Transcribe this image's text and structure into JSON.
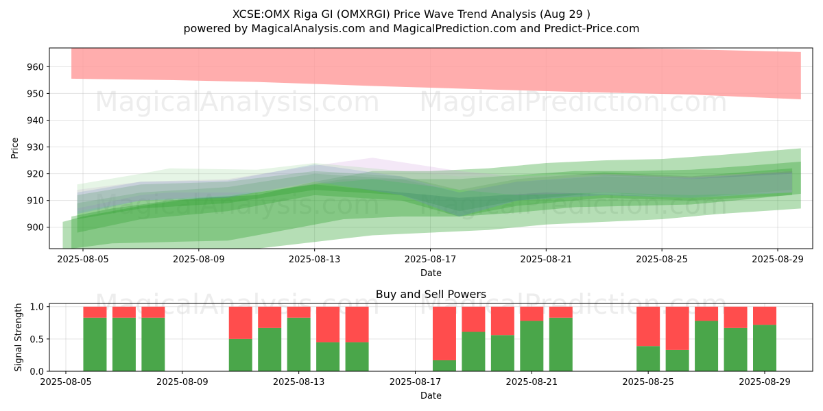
{
  "title_line1": "XCSE:OMX Riga GI (OMXRGI) Price Wave Trend Analysis (Aug 29 )",
  "title_line2": "powered by MagicalAnalysis.com and MagicalPrediction.com and Predict-Price.com",
  "watermarks": [
    "MagicalAnalysis.com",
    "MagicalPrediction.com"
  ],
  "colors": {
    "red_band": "#ff9999",
    "green": "#2ca02c",
    "buy": "#4aa64a",
    "sell": "#ff4d4d"
  },
  "chart_data": [
    {
      "type": "area",
      "name": "price-wave-chart",
      "xlabel": "Date",
      "ylabel": "Price",
      "x_ticks": [
        "2025-08-05",
        "2025-08-09",
        "2025-08-13",
        "2025-08-17",
        "2025-08-21",
        "2025-08-25",
        "2025-08-29"
      ],
      "y_ticks": [
        900,
        910,
        920,
        930,
        940,
        950,
        960
      ],
      "ylim": [
        892,
        967
      ],
      "grid": true,
      "bands": [
        {
          "color": "#ff9999",
          "opacity": 0.8,
          "points": [
            [
              "2025-08-04.6",
              955.5,
              967.5
            ],
            [
              "2025-08-08",
              955.0,
              967.5
            ],
            [
              "2025-08-11",
              954.3,
              967.5
            ],
            [
              "2025-08-15",
              952.8,
              967.5
            ],
            [
              "2025-08-19",
              951.5,
              967.5
            ],
            [
              "2025-08-22",
              950.6,
              967.2
            ],
            [
              "2025-08-26",
              949.6,
              966.5
            ],
            [
              "2025-08-29.8",
              947.8,
              965.5
            ]
          ]
        },
        {
          "color": "#2ca02c",
          "opacity": 0.35,
          "points": [
            [
              "2025-08-04.3",
              892.0,
              902.0
            ],
            [
              "2025-08-05",
              892.0,
              904.0
            ],
            [
              "2025-08-07",
              892.0,
              908.0
            ],
            [
              "2025-08-09",
              892.0,
              911.0
            ],
            [
              "2025-08-11",
              892.0,
              912.0
            ],
            [
              "2025-08-13",
              894.5,
              917.0
            ],
            [
              "2025-08-15",
              897.0,
              921.0
            ],
            [
              "2025-08-17",
              898.0,
              921.0
            ],
            [
              "2025-08-19",
              899.0,
              922.0
            ],
            [
              "2025-08-21",
              901.0,
              924.0
            ],
            [
              "2025-08-23",
              902.0,
              925.0
            ],
            [
              "2025-08-25",
              903.0,
              925.5
            ],
            [
              "2025-08-27",
              905.0,
              927.0
            ],
            [
              "2025-08-29.8",
              907.0,
              929.5
            ]
          ]
        },
        {
          "color": "#2ca02c",
          "opacity": 0.35,
          "points": [
            [
              "2025-08-04.6",
              892.0,
              904.0
            ],
            [
              "2025-08-06",
              894.0,
              907.0
            ],
            [
              "2025-08-08",
              894.5,
              910.0
            ],
            [
              "2025-08-10",
              895.0,
              911.5
            ],
            [
              "2025-08-12",
              899.0,
              914.5
            ],
            [
              "2025-08-14",
              903.0,
              918.0
            ],
            [
              "2025-08-16",
              904.0,
              918.0
            ],
            [
              "2025-08-18",
              904.0,
              918.0
            ],
            [
              "2025-08-20",
              905.5,
              919.5
            ],
            [
              "2025-08-22",
              907.5,
              921.0
            ],
            [
              "2025-08-24",
              908.0,
              921.0
            ],
            [
              "2025-08-26",
              908.5,
              921.5
            ],
            [
              "2025-08-28",
              910.5,
              923.0
            ],
            [
              "2025-08-29.8",
              912.5,
              924.5
            ]
          ]
        },
        {
          "color": "#2ca02c",
          "opacity": 0.3,
          "points": [
            [
              "2025-08-04.8",
              898.0,
              909.0
            ],
            [
              "2025-08-07",
              903.0,
              913.0
            ],
            [
              "2025-08-10",
              906.0,
              915.0
            ],
            [
              "2025-08-13",
              912.0,
              920.0
            ],
            [
              "2025-08-16",
              910.0,
              918.0
            ],
            [
              "2025-08-18",
              904.0,
              913.0
            ],
            [
              "2025-08-20",
              908.0,
              917.0
            ],
            [
              "2025-08-23",
              911.0,
              919.0
            ],
            [
              "2025-08-26",
              910.0,
              918.0
            ],
            [
              "2025-08-29.5",
              912.0,
              921.0
            ]
          ]
        },
        {
          "color": "#2ca02c",
          "opacity": 0.3,
          "points": [
            [
              "2025-08-04.8",
              903.0,
              912.0
            ],
            [
              "2025-08-07",
              907.0,
              916.0
            ],
            [
              "2025-08-10",
              909.0,
              917.0
            ],
            [
              "2025-08-13",
              914.0,
              921.0
            ],
            [
              "2025-08-16",
              912.0,
              919.0
            ],
            [
              "2025-08-18",
              906.0,
              914.0
            ],
            [
              "2025-08-20",
              910.0,
              918.0
            ],
            [
              "2025-08-23",
              913.0,
              920.5
            ],
            [
              "2025-08-26",
              911.0,
              919.0
            ],
            [
              "2025-08-29.5",
              914.0,
              922.0
            ]
          ]
        },
        {
          "color": "#6a7fd8",
          "opacity": 0.25,
          "points": [
            [
              "2025-08-04.8",
              905.0,
              913.0
            ],
            [
              "2025-08-07",
              910.0,
              917.0
            ],
            [
              "2025-08-10",
              911.0,
              917.5
            ],
            [
              "2025-08-13",
              917.0,
              923.5
            ],
            [
              "2025-08-16",
              912.0,
              919.0
            ],
            [
              "2025-08-18",
              904.0,
              913.0
            ],
            [
              "2025-08-20",
              910.0,
              917.0
            ],
            [
              "2025-08-23",
              912.0,
              919.5
            ],
            [
              "2025-08-26",
              911.0,
              918.5
            ],
            [
              "2025-08-29.5",
              913.0,
              920.5
            ]
          ]
        },
        {
          "color": "#c88ad8",
          "opacity": 0.2,
          "points": [
            [
              "2025-08-04.8",
              906.0,
              914.0
            ],
            [
              "2025-08-07",
              910.0,
              917.0
            ],
            [
              "2025-08-10",
              912.0,
              918.0
            ],
            [
              "2025-08-13",
              916.0,
              923.0
            ],
            [
              "2025-08-15",
              918.0,
              926.0
            ],
            [
              "2025-08-18",
              914.0,
              921.0
            ],
            [
              "2025-08-20",
              912.0,
              919.0
            ],
            [
              "2025-08-23",
              913.0,
              920.0
            ],
            [
              "2025-08-26",
              912.0,
              919.0
            ],
            [
              "2025-08-29.5",
              913.0,
              921.0
            ]
          ]
        },
        {
          "color": "#9ad89a",
          "opacity": 0.25,
          "points": [
            [
              "2025-08-04.8",
              907.0,
              916.0
            ],
            [
              "2025-08-07",
              912.0,
              920.0
            ],
            [
              "2025-08-08",
              913.0,
              922.0
            ],
            [
              "2025-08-11",
              913.0,
              921.5
            ],
            [
              "2025-08-13",
              916.0,
              924.0
            ],
            [
              "2025-08-16",
              913.0,
              921.0
            ],
            [
              "2025-08-18",
              911.0,
              919.0
            ],
            [
              "2025-08-21",
              913.0,
              920.0
            ],
            [
              "2025-08-24",
              912.0,
              919.0
            ],
            [
              "2025-08-26",
              911.0,
              918.0
            ],
            [
              "2025-08-29.5",
              913.0,
              920.0
            ]
          ]
        }
      ]
    },
    {
      "type": "bar",
      "name": "buy-sell-chart",
      "title": "Buy and Sell Powers",
      "xlabel": "Date",
      "ylabel": "Signal Strength",
      "x_ticks": [
        "2025-08-05",
        "2025-08-09",
        "2025-08-13",
        "2025-08-17",
        "2025-08-21",
        "2025-08-25",
        "2025-08-29"
      ],
      "y_ticks": [
        0.0,
        0.5,
        1.0
      ],
      "ylim": [
        0,
        1.05
      ],
      "grid": true,
      "dates": [
        "2025-08-06",
        "2025-08-07",
        "2025-08-08",
        "2025-08-11",
        "2025-08-12",
        "2025-08-13",
        "2025-08-14",
        "2025-08-15",
        "2025-08-18",
        "2025-08-19",
        "2025-08-20",
        "2025-08-21",
        "2025-08-22",
        "2025-08-25",
        "2025-08-26",
        "2025-08-27",
        "2025-08-28",
        "2025-08-29"
      ],
      "buy": [
        0.83,
        0.83,
        0.83,
        0.5,
        0.67,
        0.83,
        0.45,
        0.45,
        0.17,
        0.61,
        0.56,
        0.78,
        0.83,
        0.39,
        0.33,
        0.78,
        0.67,
        0.72
      ],
      "sell": [
        0.17,
        0.17,
        0.17,
        0.5,
        0.33,
        0.17,
        0.55,
        0.55,
        0.83,
        0.39,
        0.44,
        0.22,
        0.17,
        0.61,
        0.67,
        0.22,
        0.33,
        0.28
      ]
    }
  ]
}
